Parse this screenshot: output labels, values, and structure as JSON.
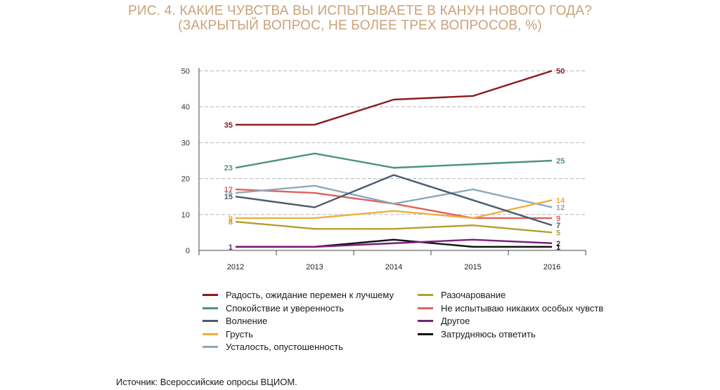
{
  "title_line1": "РИС. 4. КАКИЕ ЧУВСТВА ВЫ ИСПЫТЫВАЕТЕ В КАНУН НОВОГО ГОДА?",
  "title_line2": "(ЗАКРЫТЫЙ ВОПРОС, НЕ БОЛЕЕ ТРЕХ ВОПРОСОВ, %)",
  "source": "Источник: Всероссийские опросы ВЦИОМ.",
  "chart_data": {
    "type": "line",
    "title": "РИС. 4. КАКИЕ ЧУВСТВА ВЫ ИСПЫТЫВАЕТЕ В КАНУН НОВОГО ГОДА? (ЗАКРЫТЫЙ ВОПРОС, НЕ БОЛЕЕ ТРЕХ ВОПРОСОВ, %)",
    "xlabel": "",
    "ylabel": "",
    "x": [
      "2012",
      "2013",
      "2014",
      "2015",
      "2016"
    ],
    "ylim": [
      0,
      50
    ],
    "yticks": [
      0,
      10,
      20,
      30,
      40,
      50
    ],
    "grid": "horizontal dashed",
    "legend_position": "bottom",
    "series": [
      {
        "name": "Радость, ожидание перемен к лучшему",
        "color": "#8b1a1a",
        "values": [
          35,
          35,
          42,
          43,
          50
        ],
        "start_label": "35",
        "end_label": "50"
      },
      {
        "name": "Спокойствие и уверенность",
        "color": "#4a9478",
        "values": [
          23,
          27,
          23,
          24,
          25
        ],
        "start_label": "23",
        "end_label": "25"
      },
      {
        "name": "Волнение",
        "color": "#4b5a6e",
        "values": [
          15,
          12,
          21,
          14,
          7
        ],
        "start_label": "15",
        "end_label": "7"
      },
      {
        "name": "Грусть",
        "color": "#f0ad3c",
        "values": [
          9,
          9,
          11,
          9,
          14
        ],
        "start_label": "9",
        "end_label": "14"
      },
      {
        "name": "Усталость, опустошенность",
        "color": "#8aa9bd",
        "values": [
          16,
          18,
          13,
          17,
          12
        ],
        "start_label": "16",
        "end_label": "12"
      },
      {
        "name": "Разочарование",
        "color": "#b59e2c",
        "values": [
          8,
          6,
          6,
          7,
          5
        ],
        "start_label": "8",
        "end_label": "5"
      },
      {
        "name": "Не испытываю никаких особых чувств",
        "color": "#e0625a",
        "values": [
          17,
          16,
          13,
          9,
          9
        ],
        "start_label": "17",
        "end_label": "9"
      },
      {
        "name": "Другое",
        "color": "#7a1f7a",
        "values": [
          1,
          1,
          2,
          3,
          2
        ],
        "start_label": "1",
        "end_label": "2"
      },
      {
        "name": "Затрудняюсь ответить",
        "color": "#111111",
        "values": [
          1,
          1,
          3,
          1,
          1
        ],
        "start_label": "",
        "end_label": "1"
      }
    ]
  }
}
